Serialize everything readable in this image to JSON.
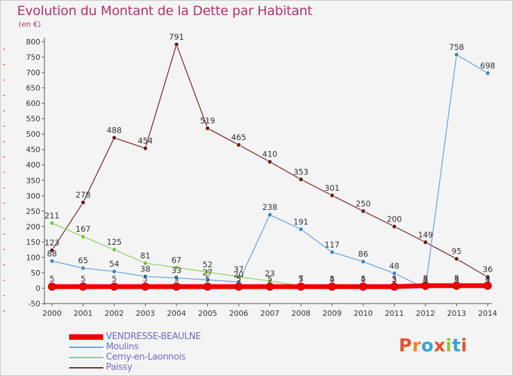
{
  "chart_title": "Evolution du Montant de la Dette par Habitant",
  "chart_unit": "(en €)",
  "logo_text": "Proxiti",
  "logo_colors": [
    "#e8512c",
    "#f08a1c",
    "#3aa0d8",
    "#e8512c",
    "#9ac13b",
    "#3aa0d8",
    "#e8512c"
  ],
  "chart_data": {
    "type": "line",
    "title": "Evolution du Montant de la Dette par Habitant",
    "ylabel": "(en €)",
    "xlabel": "",
    "ylim": [
      -50,
      800
    ],
    "yticks": [
      -50,
      0,
      50,
      100,
      150,
      200,
      250,
      300,
      350,
      400,
      450,
      500,
      550,
      600,
      650,
      700,
      750,
      800
    ],
    "grid": false,
    "legend_position": "bottom-left",
    "x": [
      "2000",
      "2001",
      "2002",
      "2003",
      "2004",
      "2005",
      "2006",
      "2007",
      "2008",
      "2009",
      "2010",
      "2011",
      "2012",
      "2013",
      "2014"
    ],
    "series": [
      {
        "name": "VENDRESSE-BEAULNE",
        "color": "#ee0000",
        "marker_color": "#ee0000",
        "values": [
          5,
          5,
          5,
          5,
          5,
          5,
          5,
          5,
          5,
          5,
          5,
          5,
          8,
          8,
          8
        ],
        "labels": [
          "5",
          "5",
          "5",
          "5",
          "5",
          "5",
          "5",
          "5",
          "5",
          "5",
          "5",
          "5",
          "8",
          "8",
          "8"
        ]
      },
      {
        "name": "Moulins",
        "color": "#6aa5d8",
        "marker_color": "#3b88c8",
        "values": [
          88,
          65,
          54,
          38,
          33,
          27,
          20,
          238,
          191,
          117,
          86,
          48,
          0,
          758,
          698
        ],
        "labels": [
          "88",
          "65",
          "54",
          "38",
          "33",
          "27",
          "20",
          "238",
          "191",
          "117",
          "86",
          "48",
          "0",
          "758",
          "698"
        ]
      },
      {
        "name": "Cerny-en-Laonnois",
        "color": "#8fd16a",
        "marker_color": "#77c83e",
        "values": [
          211,
          167,
          125,
          81,
          67,
          52,
          37,
          23,
          7,
          4,
          4,
          3,
          3,
          3,
          3
        ],
        "labels": [
          "211",
          "167",
          "125",
          "81",
          "67",
          "52",
          "37",
          "23",
          "7",
          "4",
          "4",
          "3",
          "3",
          "3",
          "3"
        ]
      },
      {
        "name": "Paissy",
        "color": "#7a2a2a",
        "marker_color": "#6b1c1c",
        "values": [
          123,
          278,
          488,
          454,
          791,
          519,
          465,
          410,
          353,
          301,
          250,
          200,
          149,
          95,
          36
        ],
        "labels": [
          "123",
          "278",
          "488",
          "454",
          "791",
          "519",
          "465",
          "410",
          "353",
          "301",
          "250",
          "200",
          "149",
          "95",
          "36"
        ]
      }
    ]
  }
}
